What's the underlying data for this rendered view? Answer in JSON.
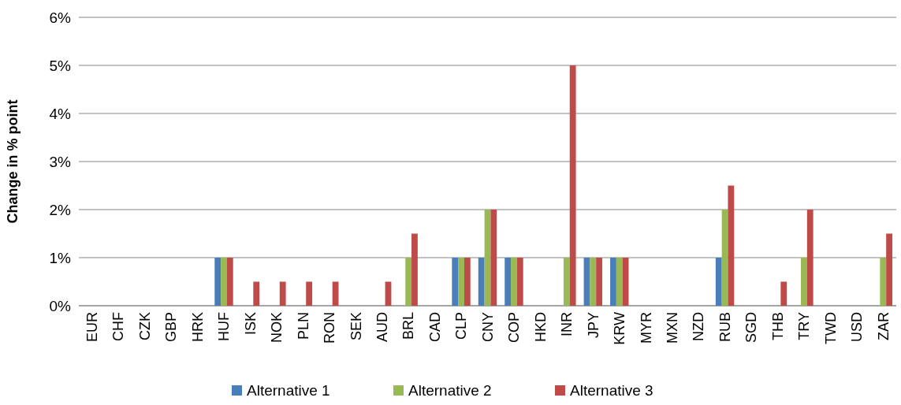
{
  "chart_data": {
    "type": "bar",
    "ylabel": "Change in % point",
    "categories": [
      "EUR",
      "CHF",
      "CZK",
      "GBP",
      "HRK",
      "HUF",
      "ISK",
      "NOK",
      "PLN",
      "RON",
      "SEK",
      "AUD",
      "BRL",
      "CAD",
      "CLP",
      "CNY",
      "COP",
      "HKD",
      "INR",
      "JPY",
      "KRW",
      "MYR",
      "MXN",
      "NZD",
      "RUB",
      "SGD",
      "THB",
      "TRY",
      "TWD",
      "USD",
      "ZAR"
    ],
    "series": [
      {
        "name": "Alternative 1",
        "color": "#4a7ebb",
        "values": [
          0,
          0,
          0,
          0,
          0,
          1,
          0,
          0,
          0,
          0,
          0,
          0,
          0,
          0,
          1,
          1,
          1,
          0,
          0,
          1,
          1,
          0,
          0,
          0,
          1,
          0,
          0,
          0,
          0,
          0,
          0
        ]
      },
      {
        "name": "Alternative 2",
        "color": "#98b954",
        "values": [
          0,
          0,
          0,
          0,
          0,
          1,
          0,
          0,
          0,
          0,
          0,
          0,
          1,
          0,
          1,
          2,
          1,
          0,
          1,
          1,
          1,
          0,
          0,
          0,
          2,
          0,
          0,
          1,
          0,
          0,
          1
        ]
      },
      {
        "name": "Alternative 3",
        "color": "#be4b48",
        "values": [
          0,
          0,
          0,
          0,
          0,
          1,
          0.5,
          0.5,
          0.5,
          0.5,
          0,
          0.5,
          1.5,
          0,
          1,
          2,
          1,
          0,
          5,
          1,
          1,
          0,
          0,
          0,
          2.5,
          0,
          0.5,
          2,
          0,
          0,
          1.5
        ]
      }
    ],
    "ylim": [
      0,
      6
    ],
    "yticks": [
      {
        "value": 0,
        "label": "0%"
      },
      {
        "value": 1,
        "label": "1%"
      },
      {
        "value": 2,
        "label": "2%"
      },
      {
        "value": 3,
        "label": "3%"
      },
      {
        "value": 4,
        "label": "4%"
      },
      {
        "value": 5,
        "label": "5%"
      },
      {
        "value": 6,
        "label": "6%"
      }
    ],
    "grid": "y",
    "legend": "bottom"
  }
}
